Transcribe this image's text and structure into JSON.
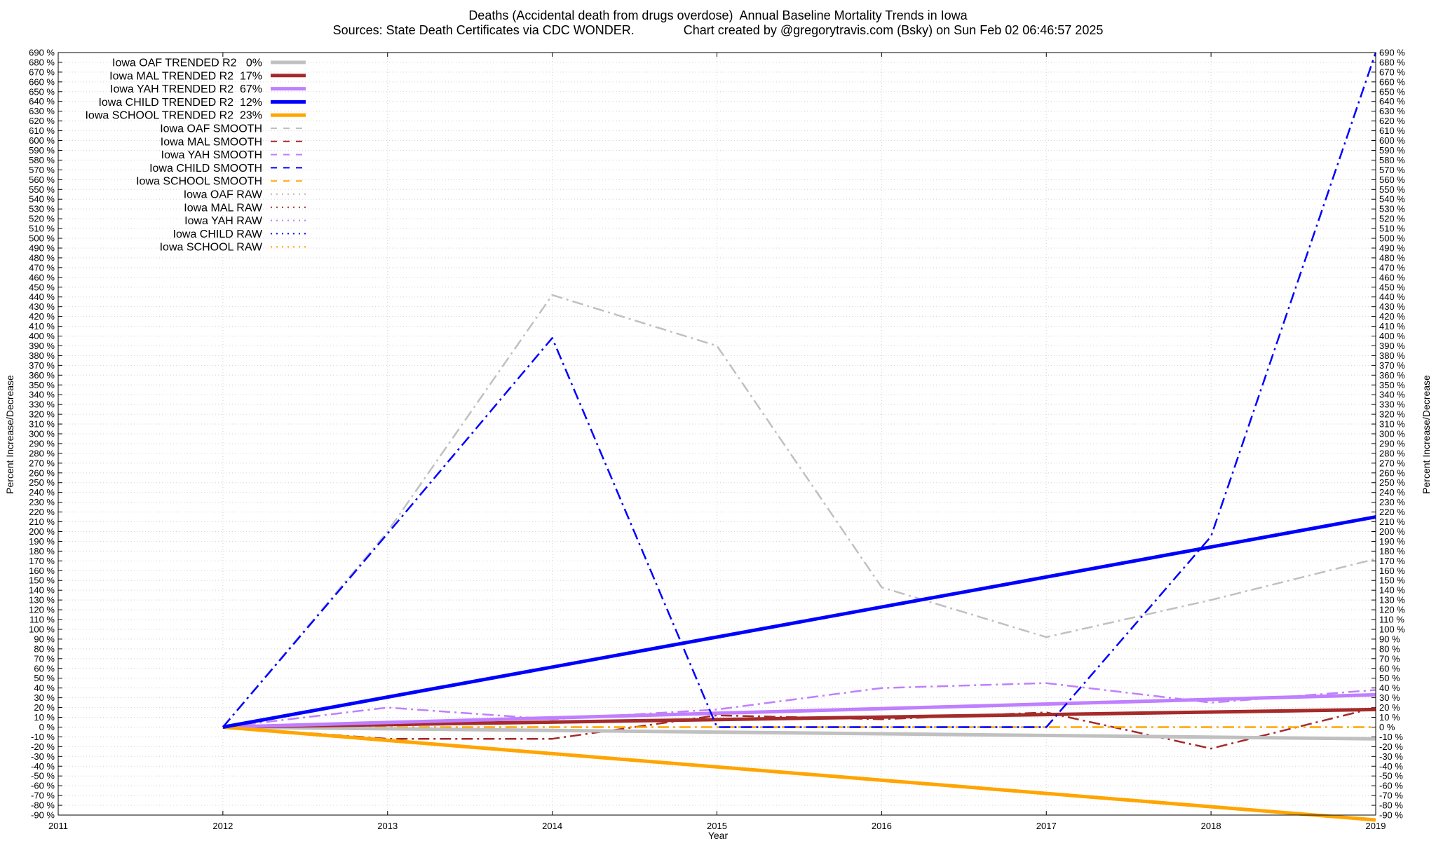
{
  "chart_data": {
    "type": "line",
    "title": "Deaths (Accidental death from drugs overdose)  Annual Baseline Mortality Trends in Iowa",
    "subtitle": "Sources: State Death Certificates via CDC WONDER.              Chart created by @gregorytravis.com (Bsky) on Sun Feb 02 06:46:57 2025",
    "xlabel": "Year",
    "ylabel_left": "Percent Increase/Decrease",
    "ylabel_right": "Percent Increase/Decrease",
    "xlim": [
      2011,
      2019
    ],
    "ylim": [
      -90,
      690
    ],
    "x_ticks": [
      2011,
      2012,
      2013,
      2014,
      2015,
      2016,
      2017,
      2018,
      2019
    ],
    "y_tick_step": 10,
    "y_tick_suffix": " %",
    "grid": true,
    "legend_position": "top-left",
    "series": [
      {
        "name": "Iowa OAF TRENDED R2   0%",
        "style": "trended",
        "color": "#c0c0c0",
        "x": [
          2012,
          2019
        ],
        "y": [
          0,
          -12
        ]
      },
      {
        "name": "Iowa MAL TRENDED R2  17%",
        "style": "trended",
        "color": "#a52a2a",
        "x": [
          2012,
          2019
        ],
        "y": [
          0,
          18
        ]
      },
      {
        "name": "Iowa YAH TRENDED R2  67%",
        "style": "trended",
        "color": "#bf7fff",
        "x": [
          2012,
          2019
        ],
        "y": [
          0,
          33
        ]
      },
      {
        "name": "Iowa CHILD TRENDED R2  12%",
        "style": "trended",
        "color": "#0000ff",
        "x": [
          2012,
          2019
        ],
        "y": [
          0,
          215
        ]
      },
      {
        "name": "Iowa SCHOOL TRENDED R2  23%",
        "style": "trended",
        "color": "#ffa500",
        "x": [
          2012,
          2019
        ],
        "y": [
          0,
          -95
        ]
      },
      {
        "name": "Iowa OAF SMOOTH",
        "style": "smooth",
        "color": "#c0c0c0",
        "x": [
          2012,
          2013,
          2014,
          2015,
          2016,
          2017,
          2018,
          2019
        ],
        "y": [
          0,
          200,
          442,
          390,
          143,
          92,
          130,
          172
        ]
      },
      {
        "name": "Iowa MAL SMOOTH",
        "style": "smooth",
        "color": "#a52a2a",
        "x": [
          2012,
          2013,
          2014,
          2015,
          2016,
          2017,
          2018,
          2019
        ],
        "y": [
          0,
          -12,
          -12,
          12,
          8,
          15,
          -22,
          20
        ]
      },
      {
        "name": "Iowa YAH SMOOTH",
        "style": "smooth",
        "color": "#bf7fff",
        "x": [
          2012,
          2013,
          2014,
          2015,
          2016,
          2017,
          2018,
          2019
        ],
        "y": [
          0,
          20,
          8,
          18,
          40,
          45,
          25,
          38
        ]
      },
      {
        "name": "Iowa CHILD SMOOTH",
        "style": "smooth",
        "color": "#0000ff",
        "x": [
          2012,
          2013,
          2014,
          2015,
          2016,
          2017,
          2018,
          2019
        ],
        "y": [
          0,
          198,
          398,
          0,
          0,
          0,
          195,
          690
        ]
      },
      {
        "name": "Iowa SCHOOL SMOOTH",
        "style": "smooth",
        "color": "#ffa500",
        "x": [
          2012,
          2013,
          2014,
          2015,
          2016,
          2017,
          2018,
          2019
        ],
        "y": [
          0,
          0,
          0,
          0,
          0,
          0,
          0,
          0
        ]
      },
      {
        "name": "Iowa OAF RAW",
        "style": "raw",
        "color": "#c0c0c0",
        "x": [],
        "y": []
      },
      {
        "name": "Iowa MAL RAW",
        "style": "raw",
        "color": "#a52a2a",
        "x": [],
        "y": []
      },
      {
        "name": "Iowa YAH RAW",
        "style": "raw",
        "color": "#bf7fff",
        "x": [],
        "y": []
      },
      {
        "name": "Iowa CHILD RAW",
        "style": "raw",
        "color": "#0000ff",
        "x": [],
        "y": []
      },
      {
        "name": "Iowa SCHOOL RAW",
        "style": "raw",
        "color": "#ffa500",
        "x": [],
        "y": []
      }
    ]
  }
}
